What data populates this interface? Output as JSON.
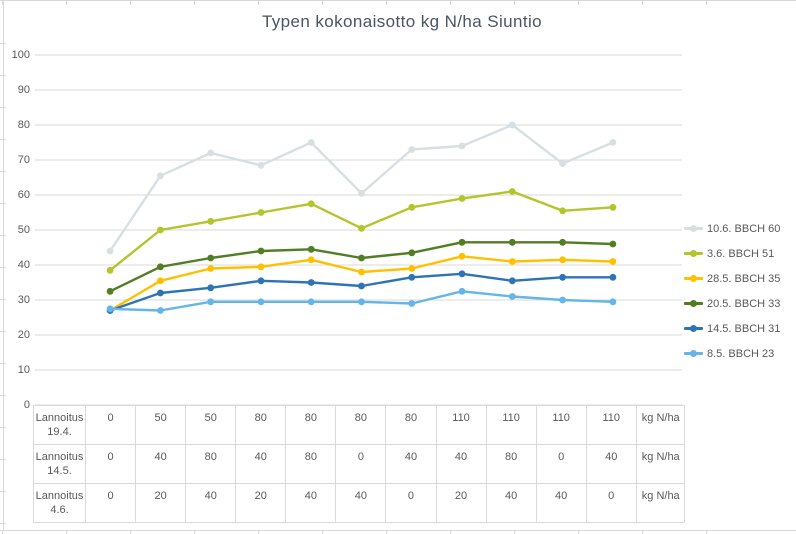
{
  "chart_data": {
    "type": "line",
    "title": "Typen kokonaisotto kg N/ha Siuntio",
    "xlabel": "",
    "ylabel": "",
    "ylim": [
      0,
      100
    ],
    "yticks": [
      0,
      10,
      20,
      30,
      40,
      50,
      60,
      70,
      80,
      90,
      100
    ],
    "grid": "horizontal",
    "legend_position": "right",
    "x_count": 11,
    "series": [
      {
        "name": "10.6. BBCH 60",
        "color": "#d7dfe2",
        "values": [
          44,
          65.5,
          72,
          68.5,
          75,
          60.5,
          73,
          74,
          80,
          69,
          75
        ]
      },
      {
        "name": "3.6. BBCH 51",
        "color": "#b3c52b",
        "values": [
          38.5,
          50,
          52.5,
          55,
          57.5,
          50.5,
          56.5,
          59,
          61,
          55.5,
          56.5
        ]
      },
      {
        "name": "28.5. BBCH 35",
        "color": "#ffc000",
        "values": [
          27,
          35.5,
          39,
          39.5,
          41.5,
          38,
          39,
          42.5,
          41,
          41.5,
          41
        ]
      },
      {
        "name": "20.5. BBCH 33",
        "color": "#517d23",
        "values": [
          32.5,
          39.5,
          42,
          44,
          44.5,
          42,
          43.5,
          46.5,
          46.5,
          46.5,
          46
        ]
      },
      {
        "name": "14.5. BBCH 31",
        "color": "#2e74b5",
        "values": [
          27,
          32,
          33.5,
          35.5,
          35,
          34,
          36.5,
          37.5,
          35.5,
          36.5,
          36.5
        ]
      },
      {
        "name": "8.5. BBCH 23",
        "color": "#64b6e8",
        "values": [
          27.5,
          27,
          29.5,
          29.5,
          29.5,
          29.5,
          29,
          32.5,
          31,
          30,
          29.5
        ]
      }
    ],
    "data_table": {
      "rows": [
        {
          "label_line1": "Lannoitus",
          "label_line2": "19.4.",
          "values": [
            "0",
            "50",
            "50",
            "80",
            "80",
            "80",
            "80",
            "110",
            "110",
            "110",
            "110"
          ],
          "unit": "kg N/ha"
        },
        {
          "label_line1": "Lannoitus",
          "label_line2": "14.5.",
          "values": [
            "0",
            "40",
            "80",
            "40",
            "80",
            "0",
            "40",
            "40",
            "80",
            "0",
            "40"
          ],
          "unit": "kg N/ha"
        },
        {
          "label_line1": "Lannoitus",
          "label_line2": "4.6.",
          "values": [
            "0",
            "20",
            "40",
            "20",
            "40",
            "40",
            "0",
            "20",
            "40",
            "40",
            "0"
          ],
          "unit": "kg N/ha"
        }
      ]
    }
  },
  "colors": {
    "grid_line": "#d9d9d9",
    "sheet_line": "#d5d9dc",
    "axis_text": "#595959",
    "title_text": "#4a5563"
  }
}
